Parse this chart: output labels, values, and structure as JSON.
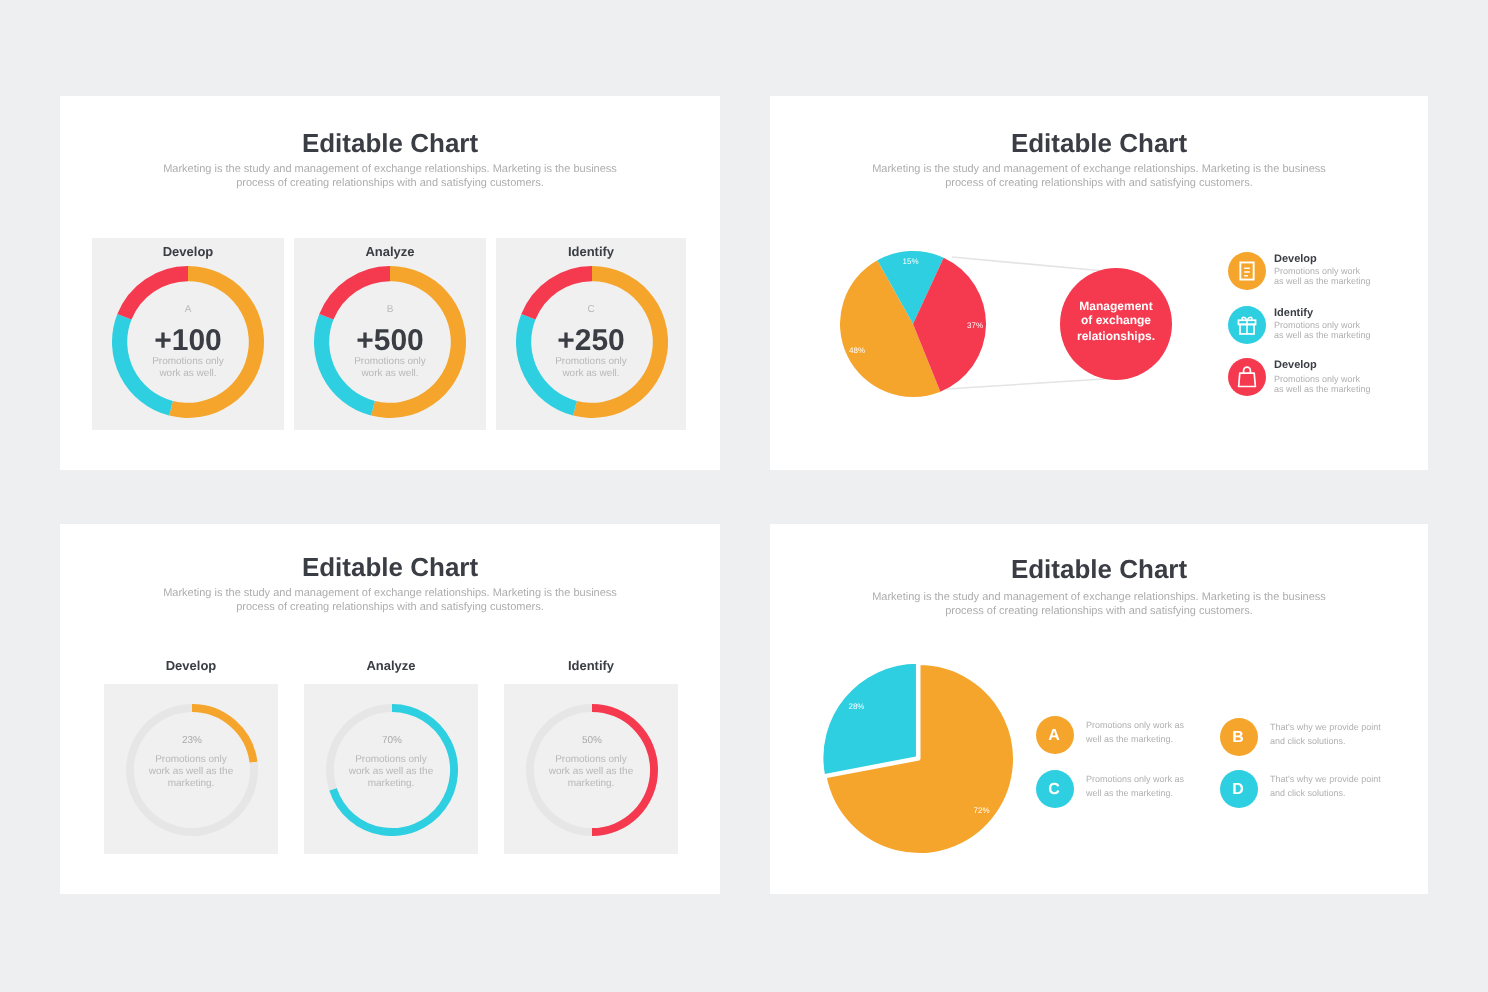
{
  "chart_data": [
    {
      "type": "other",
      "title": "Editable Chart",
      "subtitle": "Marketing is the study and management of exchange relationships. Marketing is the business process of creating relationships with and satisfying customers."
    },
    {
      "type": "donut",
      "title": "Develop",
      "categories": [
        null,
        null,
        null
      ],
      "values": [
        54,
        27,
        19
      ],
      "colors": [
        "#f5a52b",
        "#2dcfe0",
        "#f5394f"
      ],
      "annotations": [
        "A",
        "+100",
        "Promotions only work as well."
      ]
    },
    {
      "type": "donut",
      "title": "Analyze",
      "categories": [
        null,
        null,
        null
      ],
      "values": [
        54,
        27,
        19
      ],
      "colors": [
        "#f5a52b",
        "#2dcfe0",
        "#f5394f"
      ],
      "annotations": [
        "B",
        "+500",
        "Promotions only work as well."
      ]
    },
    {
      "type": "donut",
      "title": "Identify",
      "categories": [
        null,
        null,
        null
      ],
      "values": [
        54,
        27,
        19
      ],
      "colors": [
        "#f5a52b",
        "#2dcfe0",
        "#f5394f"
      ],
      "annotations": [
        "C",
        "+250",
        "Promotions only work as well."
      ]
    },
    {
      "type": "other",
      "title": "Editable Chart",
      "subtitle": "Marketing is the study and management of exchange relationships. Marketing is the business process of creating relationships with and satisfying customers."
    },
    {
      "type": "pie",
      "categories": [
        null,
        null,
        null
      ],
      "values": [
        48,
        15,
        37
      ],
      "colors": [
        "#f5a52b",
        "#2dcfe0",
        "#f5394f"
      ],
      "value_labels": [
        "48%",
        "15%",
        "37%"
      ]
    },
    {
      "type": "other",
      "annotations": [
        "Management of exchange relationships.",
        "Develop",
        "Promotions only work as well as the marketing",
        "Identify",
        "Promotions only work as well as the marketing",
        "Develop",
        "Promotions only work as well as the marketing"
      ]
    },
    {
      "type": "other",
      "title": "Editable Chart",
      "subtitle": "Marketing is the study and management of exchange relationships. Marketing is the business process of creating relationships with and satisfying customers."
    },
    {
      "type": "donut",
      "title": "Develop",
      "categories": [
        null,
        null
      ],
      "values": [
        23,
        77
      ],
      "colors": [
        "#f5a52b",
        "#e6e6e6"
      ],
      "value_labels": [
        "23%",
        null
      ],
      "annotations": [
        "Promotions only work as well as the marketing."
      ]
    },
    {
      "type": "donut",
      "title": "Analyze",
      "categories": [
        null,
        null
      ],
      "values": [
        70,
        30
      ],
      "colors": [
        "#2dcfe0",
        "#e6e6e6"
      ],
      "value_labels": [
        "70%",
        null
      ],
      "annotations": [
        "Promotions only work as well as the marketing."
      ]
    },
    {
      "type": "donut",
      "title": "Identify",
      "categories": [
        null,
        null
      ],
      "values": [
        50,
        50
      ],
      "colors": [
        "#f5394f",
        "#e6e6e6"
      ],
      "value_labels": [
        "50%",
        null
      ],
      "annotations": [
        "Promotions only work as well as the marketing."
      ]
    },
    {
      "type": "other",
      "title": "Editable Chart",
      "subtitle": "Marketing is the study and management of exchange relationships. Marketing is the business process of creating relationships with and satisfying customers."
    },
    {
      "type": "pie",
      "categories": [
        null,
        null
      ],
      "values": [
        72,
        28
      ],
      "colors": [
        "#f5a52b",
        "#2dcfe0"
      ],
      "value_labels": [
        "72%",
        "28%"
      ]
    },
    {
      "type": "other",
      "annotations": [
        "A",
        "Promotions only work as well as the marketing.",
        "B",
        "That's why we provide point and click solutions.",
        "C",
        "Promotions only work as well as the marketing.",
        "D",
        "That's why we provide point and click solutions."
      ]
    }
  ]
}
